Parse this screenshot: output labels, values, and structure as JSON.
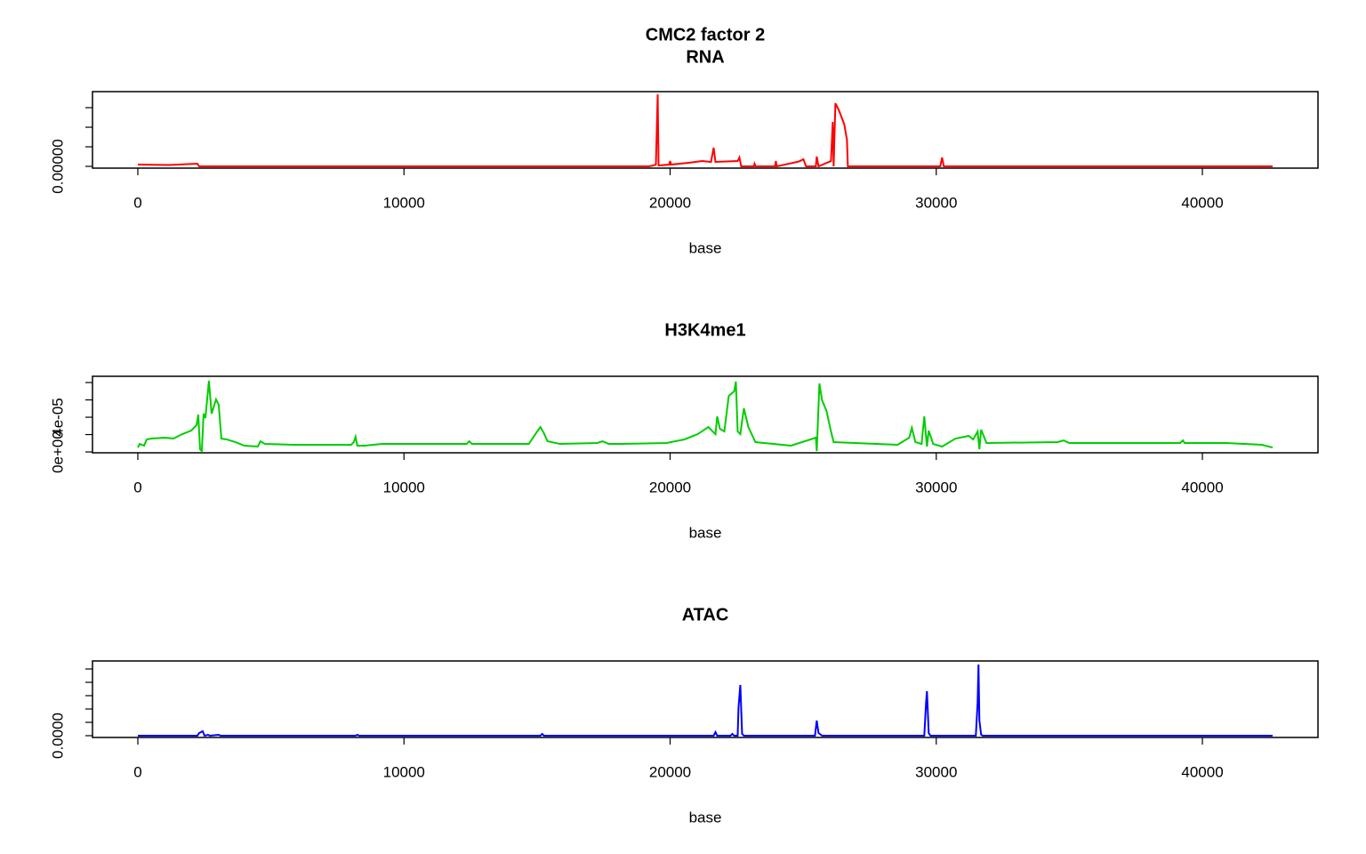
{
  "chart_data": [
    {
      "type": "line",
      "title": "CMC2 factor 2",
      "subtitle": "RNA",
      "xlabel": "base",
      "color": "#ff0000",
      "xlim": [
        -1704,
        44343
      ],
      "xticks": [
        0,
        10000,
        20000,
        30000,
        40000
      ],
      "ylim": [
        -4.5e-06,
        0.000191
      ],
      "yticks": [
        {
          "value": 0,
          "label": "0.00000"
        },
        {
          "value": 5e-05,
          "label": null
        },
        {
          "value": 0.0001,
          "label": null
        },
        {
          "value": 0.00015,
          "label": null
        }
      ],
      "x": [
        0,
        1169,
        2237,
        2304,
        19199,
        19366,
        19466,
        19533,
        19566,
        19967,
        20000,
        20034,
        20701,
        21202,
        21536,
        21636,
        21703,
        22538,
        22604,
        22671,
        23139,
        23172,
        23206,
        23940,
        23973,
        24007,
        24775,
        24875,
        25008,
        25108,
        25476,
        25509,
        25576,
        26044,
        26111,
        26144,
        26211,
        26345,
        26545,
        26645,
        26678,
        30151,
        30218,
        30285,
        42639
      ],
      "values": [
        4.5e-06,
        3.4e-06,
        6.8e-06,
        0,
        0,
        2.3e-06,
        4.5e-06,
        0.000184,
        2.3e-06,
        4.5e-06,
        1.36e-05,
        4.5e-06,
        9.1e-06,
        1.36e-05,
        1.14e-05,
        4.77e-05,
        1.14e-05,
        1.36e-05,
        2.27e-05,
        0,
        0,
        6.8e-06,
        0,
        0,
        1.36e-05,
        0,
        1.14e-05,
        1.36e-05,
        1.82e-05,
        0,
        0,
        2.5e-05,
        0,
        1.36e-05,
        0.0001136,
        0,
        0.0001614,
        0.000143,
        0.0001068,
        6.8e-05,
        0,
        0,
        2.27e-05,
        0,
        0
      ]
    },
    {
      "type": "line",
      "title": "H3K4me1",
      "xlabel": "base",
      "color": "#00cd00",
      "xlim": [
        -1704,
        44343
      ],
      "xticks": [
        0,
        10000,
        20000,
        30000,
        40000
      ],
      "ylim": [
        -1e-06,
        8.72e-05
      ],
      "yticks": [
        {
          "value": 0,
          "label": "0e+00"
        },
        {
          "value": 2e-05,
          "label": null
        },
        {
          "value": 4e-05,
          "label": "4e-05"
        },
        {
          "value": 6e-05,
          "label": null
        },
        {
          "value": 8e-05,
          "label": null
        }
      ],
      "x": [
        0,
        67,
        234,
        334,
        501,
        1002,
        1336,
        1669,
        2003,
        2204,
        2271,
        2337,
        2404,
        2471,
        2538,
        2671,
        2771,
        2938,
        3038,
        3139,
        3339,
        3673,
        4007,
        4508,
        4608,
        4775,
        5843,
        8014,
        8114,
        8180,
        8247,
        8515,
        9182,
        10017,
        12354,
        12454,
        12555,
        14692,
        14959,
        15126,
        15259,
        15393,
        15860,
        17263,
        17463,
        17697,
        18198,
        19867,
        20535,
        21036,
        21436,
        21703,
        21770,
        21870,
        22037,
        22204,
        22405,
        22471,
        22538,
        22638,
        22772,
        22939,
        23206,
        23874,
        24542,
        25477,
        25510,
        25610,
        25710,
        25877,
        26044,
        26144,
        28548,
        28983,
        29083,
        29216,
        29450,
        29550,
        29650,
        29717,
        29884,
        30218,
        30719,
        31220,
        31387,
        31554,
        31621,
        31687,
        31887,
        34559,
        34792,
        34993,
        36896,
        39167,
        39267,
        39334,
        40903,
        42238,
        42639
      ],
      "values": [
        5.1e-06,
        9.2e-06,
        7.2e-06,
        1.44e-05,
        1.54e-05,
        1.64e-05,
        1.54e-05,
        2.05e-05,
        2.46e-05,
        3.08e-05,
        4.31e-05,
        3.1e-06,
        1e-06,
        4.41e-05,
        3.9e-05,
        8.21e-05,
        4.41e-05,
        6.05e-05,
        5.44e-05,
        1.54e-05,
        1.44e-05,
        1.13e-05,
        7.2e-06,
        6.2e-06,
        1.23e-05,
        9.2e-06,
        8.2e-06,
        8.2e-06,
        1.13e-05,
        1.74e-05,
        7.2e-06,
        7.2e-06,
        9.2e-06,
        9.2e-06,
        9.2e-06,
        1.23e-05,
        9.2e-06,
        9.2e-06,
        2.15e-05,
        2.87e-05,
        2.15e-05,
        1.23e-05,
        9.2e-06,
        1.03e-05,
        1.23e-05,
        9.2e-06,
        9.2e-06,
        1.03e-05,
        1.44e-05,
        2.05e-05,
        2.87e-05,
        2.05e-05,
        4.1e-05,
        2.67e-05,
        2.36e-05,
        6.46e-05,
        6.98e-05,
        8.11e-05,
        2.36e-05,
        2.05e-05,
        5.03e-05,
        2.87e-05,
        1.13e-05,
        9.2e-06,
        7.2e-06,
        1.64e-05,
        1e-06,
        7.9e-05,
        5.95e-05,
        4.72e-05,
        2.36e-05,
        1.13e-05,
        8.2e-06,
        1.64e-05,
        2.77e-05,
        1.13e-05,
        9.2e-06,
        4.1e-05,
        6.2e-06,
        2.46e-05,
        9.2e-06,
        6.2e-06,
        1.54e-05,
        1.85e-05,
        1.44e-05,
        2.36e-05,
        3.1e-06,
        2.57e-05,
        1.03e-05,
        1.13e-05,
        1.33e-05,
        1.03e-05,
        1.03e-05,
        1.03e-05,
        1.33e-05,
        1.03e-05,
        1.03e-05,
        8.2e-06,
        5.1e-06
      ]
    },
    {
      "type": "line",
      "title": "ATAC",
      "xlabel": "base",
      "color": "#0000ff",
      "xlim": [
        -1704,
        44343
      ],
      "xticks": [
        0,
        10000,
        20000,
        30000,
        40000
      ],
      "ylim": [
        -6.67e-05,
        0.0028
      ],
      "yticks": [
        {
          "value": 0,
          "label": "0.0000"
        },
        {
          "value": 0.0005,
          "label": null
        },
        {
          "value": 0.001,
          "label": null
        },
        {
          "value": 0.0015,
          "label": null
        },
        {
          "value": 0.002,
          "label": null
        },
        {
          "value": 0.0025,
          "label": null
        }
      ],
      "x": [
        0,
        2237,
        2304,
        2437,
        2504,
        2638,
        2705,
        3038,
        3105,
        8180,
        8247,
        8314,
        15126,
        15193,
        15259,
        21636,
        21703,
        21770,
        22271,
        22338,
        22405,
        22538,
        22571,
        22638,
        22705,
        22772,
        25443,
        25509,
        25576,
        25710,
        29550,
        29617,
        29650,
        29717,
        29784,
        31487,
        31554,
        31587,
        31621,
        31687,
        31754,
        42639
      ],
      "values": [
        0,
        0,
        0.0001,
        0.000167,
        0,
        3.3e-05,
        0,
        3.3e-05,
        0,
        0,
        3.3e-05,
        0,
        0,
        6.7e-05,
        0,
        0,
        0.000133,
        0,
        0,
        6.7e-05,
        0,
        0,
        0.001067,
        0.0019,
        6.7e-05,
        0,
        0,
        0.000567,
        0.0001,
        0,
        0,
        0.001233,
        0.001667,
        0.0001,
        0,
        0,
        0.001233,
        0.002667,
        0.000567,
        3.3e-05,
        0,
        0
      ]
    }
  ]
}
